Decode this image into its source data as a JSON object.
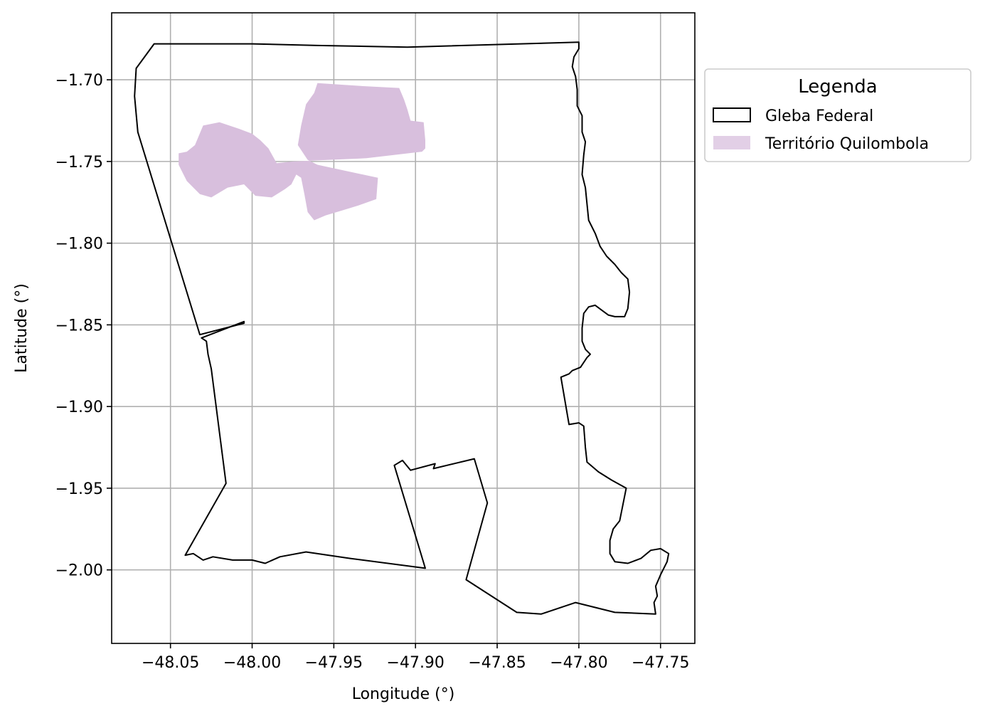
{
  "chart_data": {
    "type": "map",
    "xlabel": "Longitude (°)",
    "ylabel": "Latitude (°)",
    "xlim": [
      -48.086,
      -47.729
    ],
    "ylim": [
      -2.045,
      -1.659
    ],
    "x_ticks": [
      -48.05,
      -48.0,
      -47.95,
      -47.9,
      -47.85,
      -47.8,
      -47.75
    ],
    "x_tick_labels": [
      "−48.05",
      "−48.00",
      "−47.95",
      "−47.90",
      "−47.85",
      "−47.80",
      "−47.75"
    ],
    "y_ticks": [
      -1.7,
      -1.75,
      -1.8,
      -1.85,
      -1.9,
      -1.95,
      -2.0
    ],
    "y_tick_labels": [
      "−1.70",
      "−1.75",
      "−1.80",
      "−1.85",
      "−1.90",
      "−1.95",
      "−2.00"
    ],
    "grid": true,
    "legend": {
      "title": "Legenda",
      "placement": "outside-upper-right",
      "entries": [
        {
          "label": "Gleba Federal",
          "style": "outline",
          "color": "#000000"
        },
        {
          "label": "Território Quilombola",
          "style": "fill",
          "color": "#d8bfdd"
        }
      ]
    },
    "layers": [
      {
        "name": "Gleba Federal",
        "stroke": "#000000",
        "polygons": [
          [
            [
              -48.06,
              -1.678
            ],
            [
              -48.0,
              -1.678
            ],
            [
              -47.96,
              -1.679
            ],
            [
              -47.905,
              -1.68
            ],
            [
              -47.8,
              -1.677
            ],
            [
              -47.8,
              -1.681
            ],
            [
              -47.803,
              -1.686
            ],
            [
              -47.804,
              -1.692
            ],
            [
              -47.802,
              -1.698
            ],
            [
              -47.801,
              -1.706
            ],
            [
              -47.801,
              -1.716
            ],
            [
              -47.798,
              -1.722
            ],
            [
              -47.798,
              -1.732
            ],
            [
              -47.796,
              -1.738
            ],
            [
              -47.797,
              -1.746
            ],
            [
              -47.798,
              -1.758
            ],
            [
              -47.796,
              -1.766
            ],
            [
              -47.795,
              -1.776
            ],
            [
              -47.794,
              -1.786
            ],
            [
              -47.79,
              -1.794
            ],
            [
              -47.787,
              -1.802
            ],
            [
              -47.783,
              -1.808
            ],
            [
              -47.778,
              -1.813
            ],
            [
              -47.774,
              -1.818
            ],
            [
              -47.77,
              -1.822
            ],
            [
              -47.769,
              -1.83
            ],
            [
              -47.77,
              -1.84
            ],
            [
              -47.772,
              -1.845
            ],
            [
              -47.778,
              -1.845
            ],
            [
              -47.782,
              -1.844
            ],
            [
              -47.786,
              -1.841
            ],
            [
              -47.79,
              -1.838
            ],
            [
              -47.794,
              -1.839
            ],
            [
              -47.797,
              -1.843
            ],
            [
              -47.798,
              -1.852
            ],
            [
              -47.798,
              -1.86
            ],
            [
              -47.796,
              -1.865
            ],
            [
              -47.793,
              -1.868
            ],
            [
              -47.795,
              -1.87
            ],
            [
              -47.799,
              -1.876
            ],
            [
              -47.804,
              -1.878
            ],
            [
              -47.806,
              -1.88
            ],
            [
              -47.811,
              -1.882
            ],
            [
              -47.806,
              -1.911
            ],
            [
              -47.8,
              -1.91
            ],
            [
              -47.797,
              -1.912
            ],
            [
              -47.796,
              -1.925
            ],
            [
              -47.795,
              -1.934
            ],
            [
              -47.788,
              -1.94
            ],
            [
              -47.78,
              -1.945
            ],
            [
              -47.771,
              -1.95
            ],
            [
              -47.773,
              -1.96
            ],
            [
              -47.775,
              -1.97
            ],
            [
              -47.779,
              -1.975
            ],
            [
              -47.781,
              -1.982
            ],
            [
              -47.781,
              -1.99
            ],
            [
              -47.778,
              -1.995
            ],
            [
              -47.77,
              -1.996
            ],
            [
              -47.762,
              -1.993
            ],
            [
              -47.756,
              -1.988
            ],
            [
              -47.75,
              -1.987
            ],
            [
              -47.745,
              -1.99
            ],
            [
              -47.746,
              -1.995
            ],
            [
              -47.75,
              -2.003
            ],
            [
              -47.753,
              -2.01
            ],
            [
              -47.752,
              -2.016
            ],
            [
              -47.754,
              -2.02
            ],
            [
              -47.753,
              -2.027
            ],
            [
              -47.778,
              -2.026
            ],
            [
              -47.802,
              -2.02
            ],
            [
              -47.823,
              -2.027
            ],
            [
              -47.838,
              -2.026
            ],
            [
              -47.869,
              -2.006
            ],
            [
              -47.856,
              -1.959
            ],
            [
              -47.864,
              -1.932
            ],
            [
              -47.889,
              -1.938
            ],
            [
              -47.888,
              -1.935
            ],
            [
              -47.903,
              -1.939
            ],
            [
              -47.908,
              -1.933
            ],
            [
              -47.913,
              -1.936
            ],
            [
              -47.894,
              -1.999
            ],
            [
              -47.94,
              -1.993
            ],
            [
              -47.967,
              -1.989
            ],
            [
              -47.983,
              -1.992
            ],
            [
              -47.992,
              -1.996
            ],
            [
              -48.0,
              -1.994
            ],
            [
              -48.012,
              -1.994
            ],
            [
              -48.024,
              -1.992
            ],
            [
              -48.03,
              -1.994
            ],
            [
              -48.036,
              -1.99
            ],
            [
              -48.041,
              -1.991
            ],
            [
              -48.016,
              -1.947
            ],
            [
              -48.025,
              -1.877
            ],
            [
              -48.027,
              -1.868
            ],
            [
              -48.028,
              -1.86
            ],
            [
              -48.031,
              -1.858
            ],
            [
              -48.005,
              -1.848
            ],
            [
              -48.005,
              -1.849
            ],
            [
              -48.032,
              -1.856
            ],
            [
              -48.07,
              -1.732
            ],
            [
              -48.072,
              -1.71
            ],
            [
              -48.071,
              -1.693
            ]
          ]
        ]
      },
      {
        "name": "Território Quilombola",
        "fill": "#d8bfdd",
        "polygons": [
          [
            [
              -47.96,
              -1.702
            ],
            [
              -47.93,
              -1.704
            ],
            [
              -47.91,
              -1.705
            ],
            [
              -47.907,
              -1.712
            ],
            [
              -47.905,
              -1.718
            ],
            [
              -47.903,
              -1.725
            ],
            [
              -47.895,
              -1.726
            ],
            [
              -47.894,
              -1.737
            ],
            [
              -47.894,
              -1.742
            ],
            [
              -47.896,
              -1.744
            ],
            [
              -47.93,
              -1.748
            ],
            [
              -47.975,
              -1.75
            ],
            [
              -47.985,
              -1.751
            ],
            [
              -47.99,
              -1.742
            ],
            [
              -47.995,
              -1.737
            ],
            [
              -48.0,
              -1.733
            ],
            [
              -48.008,
              -1.73
            ],
            [
              -48.02,
              -1.726
            ],
            [
              -48.03,
              -1.728
            ],
            [
              -48.035,
              -1.74
            ],
            [
              -48.04,
              -1.744
            ],
            [
              -48.045,
              -1.745
            ],
            [
              -48.045,
              -1.752
            ],
            [
              -48.04,
              -1.762
            ],
            [
              -48.032,
              -1.77
            ],
            [
              -48.025,
              -1.772
            ],
            [
              -48.015,
              -1.766
            ],
            [
              -48.005,
              -1.764
            ],
            [
              -47.998,
              -1.771
            ],
            [
              -47.988,
              -1.772
            ],
            [
              -47.98,
              -1.767
            ],
            [
              -47.976,
              -1.764
            ],
            [
              -47.973,
              -1.758
            ],
            [
              -47.97,
              -1.76
            ],
            [
              -47.968,
              -1.77
            ],
            [
              -47.966,
              -1.781
            ],
            [
              -47.962,
              -1.786
            ],
            [
              -47.955,
              -1.783
            ],
            [
              -47.945,
              -1.78
            ],
            [
              -47.935,
              -1.777
            ],
            [
              -47.924,
              -1.773
            ],
            [
              -47.923,
              -1.76
            ],
            [
              -47.96,
              -1.752
            ],
            [
              -47.966,
              -1.749
            ],
            [
              -47.972,
              -1.74
            ],
            [
              -47.97,
              -1.728
            ],
            [
              -47.967,
              -1.715
            ],
            [
              -47.962,
              -1.708
            ]
          ]
        ]
      }
    ]
  }
}
